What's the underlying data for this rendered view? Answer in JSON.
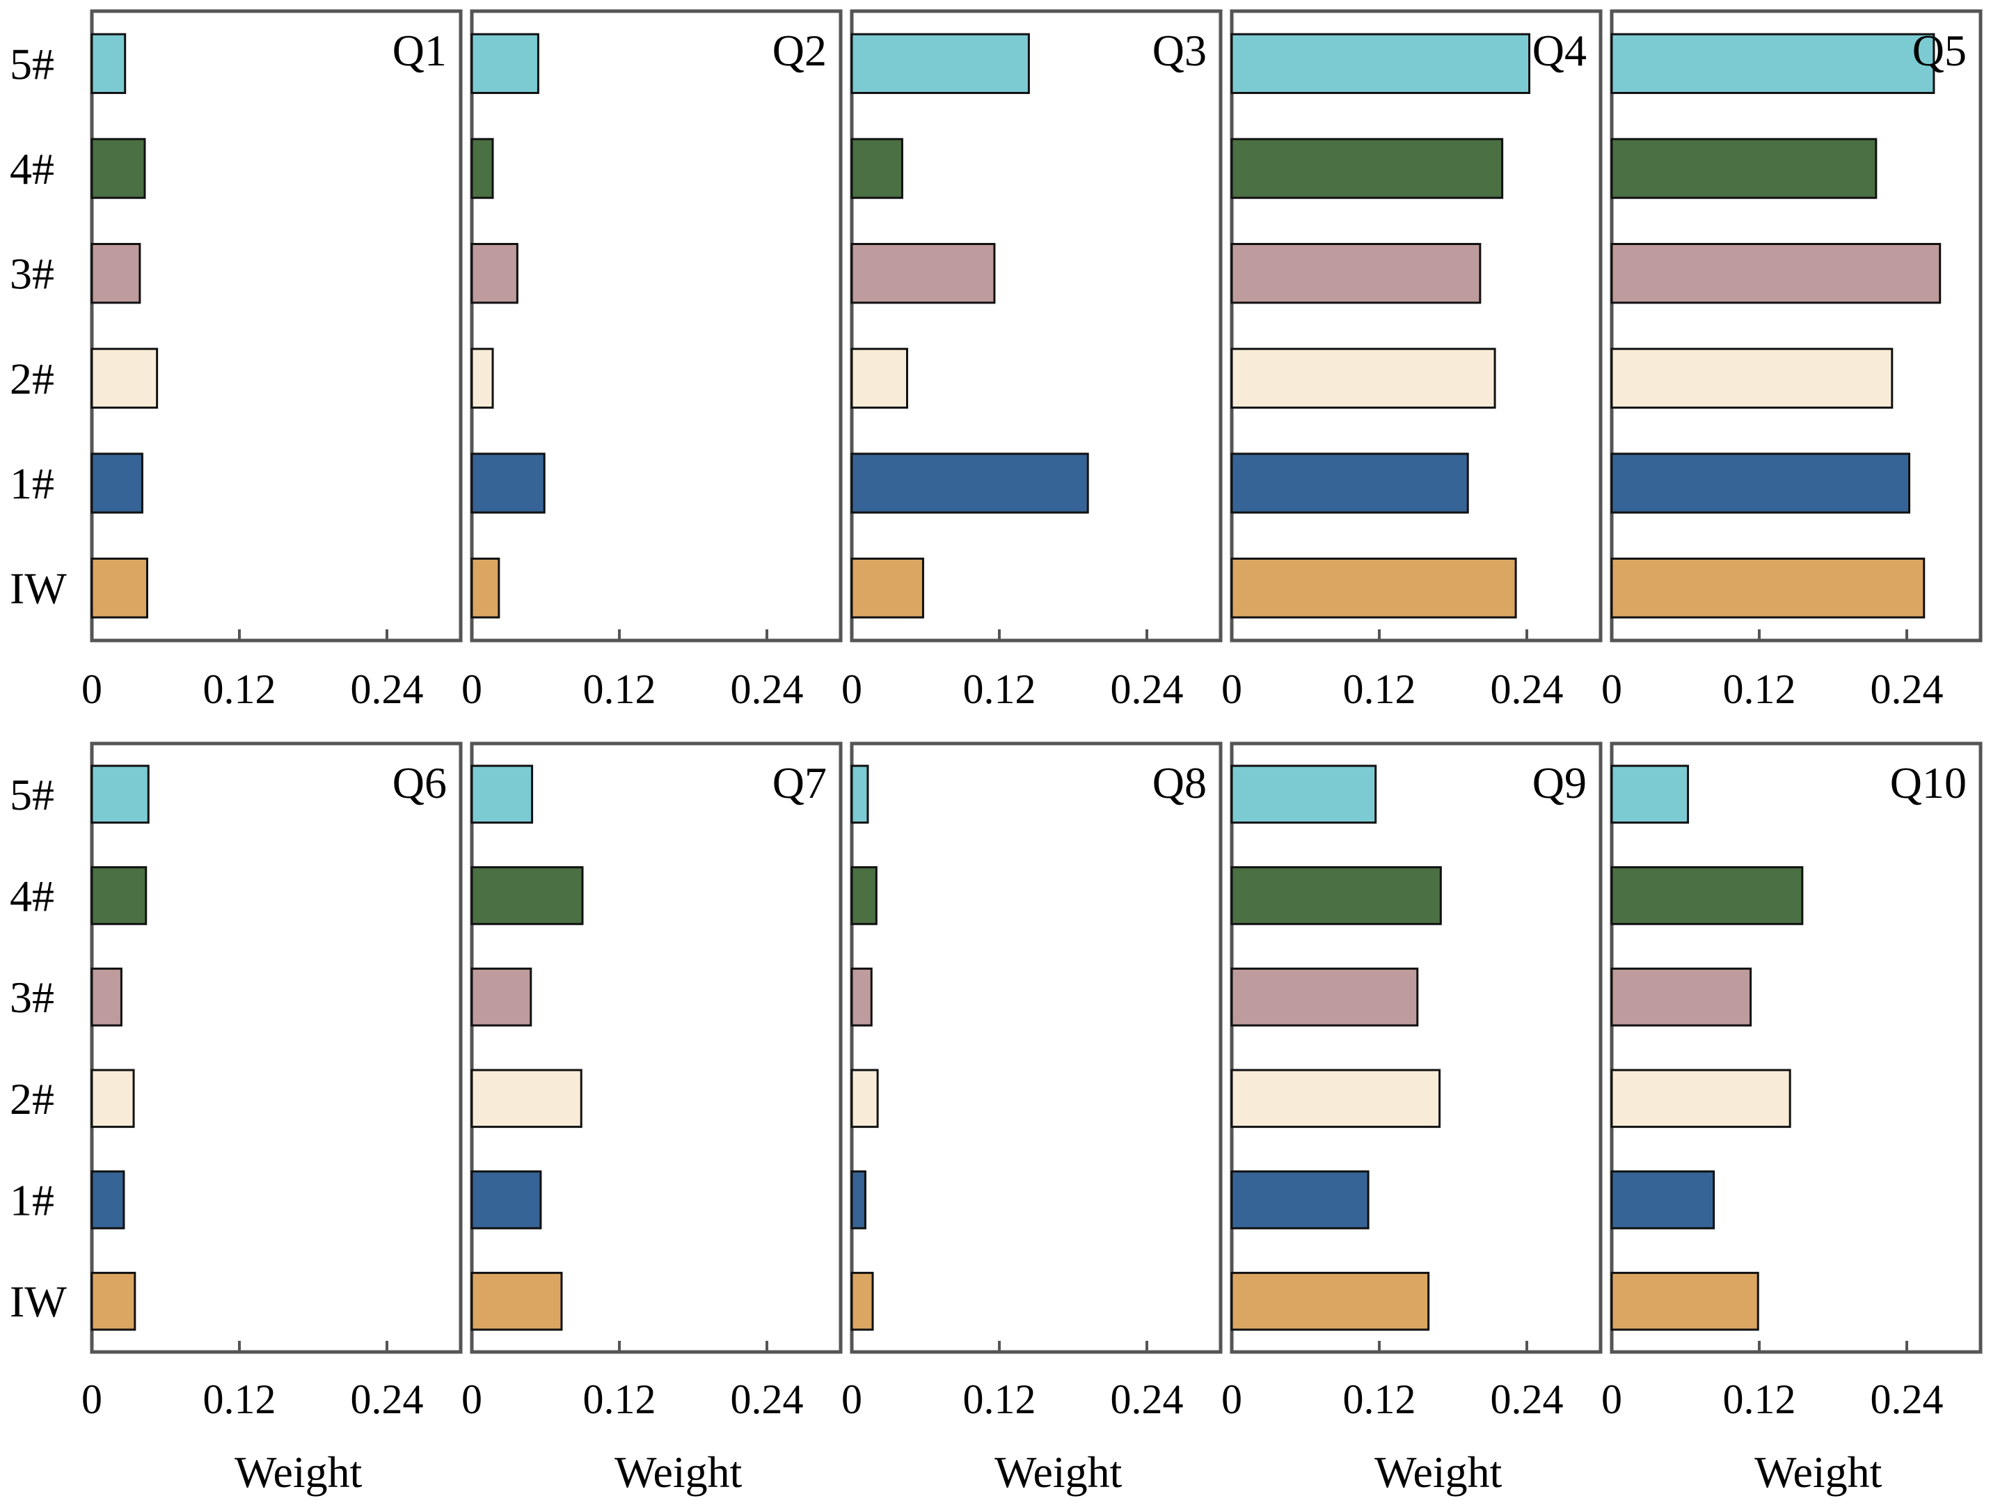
{
  "chart_data": {
    "type": "bar",
    "orientation": "horizontal",
    "categories": [
      "IW",
      "1#",
      "2#",
      "3#",
      "4#",
      "5#"
    ],
    "colors": {
      "IW": "#dba662",
      "1#": "#376496",
      "2#": "#f8ecd8",
      "3#": "#be9b9c",
      "4#": "#4b7043",
      "5#": "#7ccbd3"
    },
    "xlim": [
      0,
      0.3
    ],
    "xticks": [
      0,
      0.12,
      0.24
    ],
    "xtick_labels": [
      "0",
      "0.12",
      "0.24"
    ],
    "xlabel": "Weight",
    "panels": [
      {
        "title": "Q1",
        "values": [
          0.045,
          0.041,
          0.053,
          0.039,
          0.043,
          0.027
        ]
      },
      {
        "title": "Q2",
        "values": [
          0.022,
          0.059,
          0.017,
          0.037,
          0.017,
          0.054
        ]
      },
      {
        "title": "Q3",
        "values": [
          0.058,
          0.192,
          0.045,
          0.116,
          0.041,
          0.144
        ]
      },
      {
        "title": "Q4",
        "values": [
          0.231,
          0.192,
          0.214,
          0.202,
          0.22,
          0.242
        ]
      },
      {
        "title": "Q5",
        "values": [
          0.254,
          0.242,
          0.228,
          0.267,
          0.215,
          0.262
        ]
      },
      {
        "title": "Q6",
        "values": [
          0.035,
          0.026,
          0.034,
          0.024,
          0.044,
          0.046
        ]
      },
      {
        "title": "Q7",
        "values": [
          0.073,
          0.056,
          0.089,
          0.048,
          0.09,
          0.049
        ]
      },
      {
        "title": "Q8",
        "values": [
          0.017,
          0.011,
          0.021,
          0.016,
          0.02,
          0.013
        ]
      },
      {
        "title": "Q9",
        "values": [
          0.16,
          0.111,
          0.169,
          0.151,
          0.17,
          0.117
        ]
      },
      {
        "title": "Q10",
        "values": [
          0.119,
          0.083,
          0.145,
          0.113,
          0.155,
          0.062
        ]
      }
    ]
  }
}
